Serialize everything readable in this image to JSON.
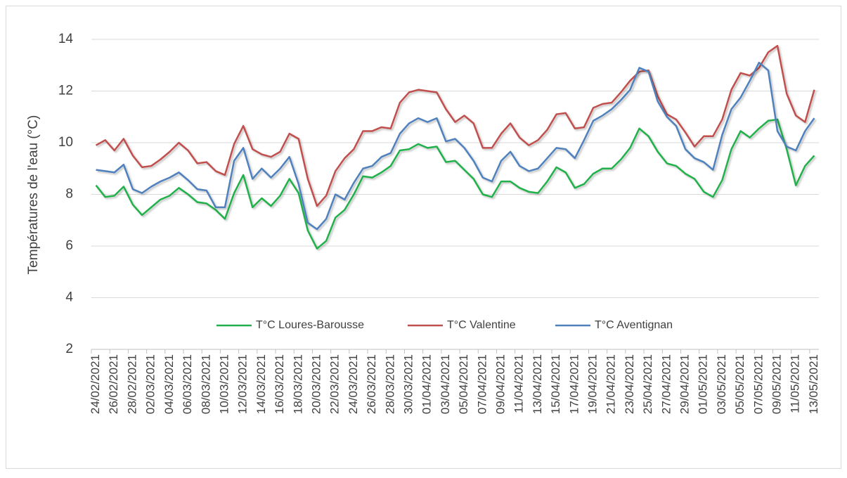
{
  "chart_data": {
    "type": "line",
    "y_label": "Températures de l'eau (°C)",
    "categories": [
      "24/02/2021",
      null,
      "26/02/2021",
      null,
      "28/02/2021",
      null,
      "02/03/2021",
      null,
      "04/03/2021",
      null,
      "06/03/2021",
      null,
      "08/03/2021",
      null,
      "10/03/2021",
      null,
      "12/03/2021",
      null,
      "14/03/2021",
      null,
      "16/03/2021",
      null,
      "18/03/2021",
      null,
      "20/03/2021",
      null,
      "22/03/2021",
      null,
      "24/03/2021",
      null,
      "26/03/2021",
      null,
      "28/03/2021",
      null,
      "30/03/2021",
      null,
      "01/04/2021",
      null,
      "03/04/2021",
      null,
      "05/04/2021",
      null,
      "07/04/2021",
      null,
      "09/04/2021",
      null,
      "11/04/2021",
      null,
      "13/04/2021",
      null,
      "15/04/2021",
      null,
      "17/04/2021",
      null,
      "19/04/2021",
      null,
      "21/04/2021",
      null,
      "23/04/2021",
      null,
      "25/04/2021",
      null,
      "27/04/2021",
      null,
      "29/04/2021",
      null,
      "01/05/2021",
      null,
      "03/05/2021",
      null,
      "05/05/2021",
      null,
      "07/05/2021",
      null,
      "09/05/2021",
      null,
      "11/05/2021",
      null,
      "13/05/2021"
    ],
    "series": [
      {
        "name": "T°C Loures-Barousse",
        "color": "#21b04b",
        "values": [
          8.35,
          7.9,
          7.95,
          8.3,
          7.6,
          7.2,
          7.5,
          7.8,
          7.95,
          8.25,
          8.0,
          7.7,
          7.65,
          7.4,
          7.05,
          8.05,
          8.75,
          7.5,
          7.85,
          7.55,
          7.95,
          8.6,
          8.05,
          6.6,
          5.9,
          6.2,
          7.1,
          7.4,
          8.0,
          8.7,
          8.65,
          8.85,
          9.1,
          9.7,
          9.75,
          9.95,
          9.8,
          9.85,
          9.25,
          9.3,
          8.95,
          8.6,
          8.0,
          7.9,
          8.5,
          8.5,
          8.25,
          8.1,
          8.05,
          8.5,
          9.05,
          8.85,
          8.25,
          8.4,
          8.8,
          9.0,
          9.0,
          9.35,
          9.8,
          10.55,
          10.25,
          9.65,
          9.2,
          9.1,
          8.8,
          8.6,
          8.1,
          7.9,
          8.55,
          9.75,
          10.45,
          10.2,
          10.55,
          10.85,
          10.9,
          9.75,
          8.35,
          9.1,
          9.5
        ]
      },
      {
        "name": "T°C Valentine",
        "color": "#c0504d",
        "values": [
          9.9,
          10.1,
          9.7,
          10.15,
          9.5,
          9.05,
          9.1,
          9.35,
          9.65,
          10.0,
          9.7,
          9.2,
          9.25,
          8.9,
          8.75,
          9.95,
          10.65,
          9.75,
          9.55,
          9.45,
          9.65,
          10.35,
          10.15,
          8.6,
          7.55,
          7.95,
          8.9,
          9.4,
          9.75,
          10.45,
          10.45,
          10.6,
          10.55,
          11.55,
          11.95,
          12.05,
          12.0,
          11.95,
          11.3,
          10.8,
          11.05,
          10.75,
          9.8,
          9.8,
          10.35,
          10.75,
          10.2,
          9.9,
          10.1,
          10.5,
          11.1,
          11.15,
          10.55,
          10.6,
          11.35,
          11.5,
          11.55,
          11.95,
          12.4,
          12.75,
          12.8,
          11.8,
          11.1,
          10.9,
          10.4,
          9.85,
          10.25,
          10.25,
          10.9,
          12.05,
          12.7,
          12.6,
          12.9,
          13.5,
          13.75,
          11.9,
          11.05,
          10.8,
          12.05
        ]
      },
      {
        "name": "T°C Aventignan",
        "color": "#4f81bd",
        "values": [
          8.95,
          8.9,
          8.85,
          9.15,
          8.2,
          8.05,
          8.3,
          8.5,
          8.65,
          8.85,
          8.55,
          8.2,
          8.15,
          7.5,
          7.5,
          9.3,
          9.8,
          8.6,
          9.0,
          8.65,
          9.0,
          9.45,
          8.4,
          6.9,
          6.65,
          7.05,
          8.0,
          7.8,
          8.45,
          9.0,
          9.1,
          9.45,
          9.6,
          10.35,
          10.75,
          10.95,
          10.8,
          10.95,
          10.05,
          10.15,
          9.8,
          9.3,
          8.65,
          8.5,
          9.3,
          9.65,
          9.1,
          8.9,
          9.0,
          9.4,
          9.8,
          9.75,
          9.4,
          10.1,
          10.85,
          11.05,
          11.3,
          11.65,
          12.05,
          12.9,
          12.75,
          11.6,
          11.0,
          10.65,
          9.75,
          9.4,
          9.25,
          8.95,
          10.3,
          11.3,
          11.75,
          12.4,
          13.1,
          12.8,
          10.45,
          9.85,
          9.7,
          10.45,
          10.95
        ]
      }
    ],
    "ylim": [
      2,
      14
    ],
    "yticks": [
      2,
      4,
      6,
      8,
      10,
      12,
      14
    ],
    "grid": true,
    "legend": "bottom"
  }
}
